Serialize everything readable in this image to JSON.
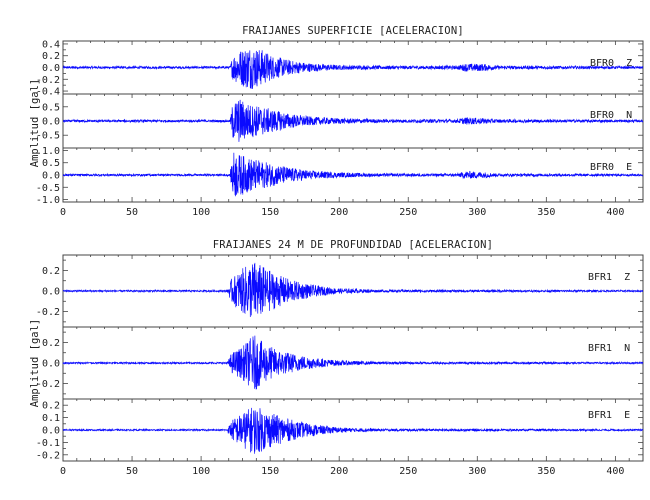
{
  "colors": {
    "trace": "#0a0aff",
    "axis": "#444444",
    "text": "#222222",
    "background": "#ffffff"
  },
  "chart_data": [
    {
      "type": "line",
      "title": "FRAIJANES SUPERFICIE [ACELERACION]",
      "ylabel": "Amplitud [gal]",
      "xlabel": "",
      "xlim": [
        0,
        420
      ],
      "x_ticks": [
        0,
        50,
        100,
        150,
        200,
        250,
        300,
        350,
        400
      ],
      "x_tick_labels": [
        "0",
        "50",
        "100",
        "150",
        "200",
        "250",
        "300",
        "350",
        "400"
      ],
      "grid": false,
      "series": [
        {
          "name": "BFR0 Z",
          "station_label": "BFR0  Z",
          "ylim": [
            -0.45,
            0.45
          ],
          "y_ticks": [
            -0.4,
            -0.3,
            -0.2,
            -0.1,
            0.0,
            0.1,
            0.2,
            0.3,
            0.4
          ],
          "y_tick_labels": [
            "-0.4",
            "-0.2",
            "0.0",
            "0.2",
            "0.4"
          ],
          "y_tick_label_values": [
            -0.4,
            -0.2,
            0.0,
            0.2,
            0.4
          ],
          "envelope": [
            [
              0,
              0.02
            ],
            [
              121,
              0.02
            ],
            [
              123,
              0.22
            ],
            [
              128,
              0.3
            ],
            [
              135,
              0.38
            ],
            [
              145,
              0.3
            ],
            [
              152,
              0.2
            ],
            [
              165,
              0.12
            ],
            [
              180,
              0.07
            ],
            [
              200,
              0.04
            ],
            [
              230,
              0.03
            ],
            [
              285,
              0.03
            ],
            [
              292,
              0.07
            ],
            [
              305,
              0.06
            ],
            [
              315,
              0.03
            ],
            [
              420,
              0.02
            ]
          ]
        },
        {
          "name": "BFR0 N",
          "station_label": "BFR0  N",
          "ylim": [
            -0.95,
            0.95
          ],
          "y_ticks": [
            -0.5,
            0.0,
            0.5
          ],
          "y_tick_labels": [
            "-0.5",
            "0.0",
            "0.5"
          ],
          "y_tick_label_values": [
            -0.5,
            0.0,
            0.5
          ],
          "envelope": [
            [
              0,
              0.04
            ],
            [
              121,
              0.04
            ],
            [
              123,
              0.7
            ],
            [
              128,
              0.8
            ],
            [
              135,
              0.6
            ],
            [
              145,
              0.5
            ],
            [
              152,
              0.4
            ],
            [
              165,
              0.25
            ],
            [
              180,
              0.15
            ],
            [
              200,
              0.1
            ],
            [
              230,
              0.06
            ],
            [
              285,
              0.06
            ],
            [
              292,
              0.13
            ],
            [
              305,
              0.1
            ],
            [
              315,
              0.06
            ],
            [
              420,
              0.04
            ]
          ]
        },
        {
          "name": "BFR0 E",
          "station_label": "BFR0  E",
          "ylim": [
            -1.1,
            1.1
          ],
          "y_ticks": [
            -1.0,
            -0.5,
            0.0,
            0.5,
            1.0
          ],
          "y_tick_labels": [
            "-1.0",
            "-0.5",
            "0.0",
            "0.5",
            "1.0"
          ],
          "y_tick_label_values": [
            -1.0,
            -0.5,
            0.0,
            0.5,
            1.0
          ],
          "envelope": [
            [
              0,
              0.04
            ],
            [
              121,
              0.04
            ],
            [
              123,
              1.0
            ],
            [
              128,
              0.85
            ],
            [
              135,
              0.7
            ],
            [
              145,
              0.55
            ],
            [
              152,
              0.45
            ],
            [
              165,
              0.3
            ],
            [
              180,
              0.18
            ],
            [
              200,
              0.1
            ],
            [
              230,
              0.06
            ],
            [
              285,
              0.06
            ],
            [
              292,
              0.16
            ],
            [
              305,
              0.12
            ],
            [
              315,
              0.06
            ],
            [
              420,
              0.04
            ]
          ]
        }
      ]
    },
    {
      "type": "line",
      "title": "FRAIJANES 24 M DE PROFUNDIDAD [ACELERACION]",
      "ylabel": "Amplitud [gal]",
      "xlabel": "",
      "xlim": [
        0,
        420
      ],
      "x_ticks": [
        0,
        50,
        100,
        150,
        200,
        250,
        300,
        350,
        400
      ],
      "x_tick_labels": [
        "0",
        "50",
        "100",
        "150",
        "200",
        "250",
        "300",
        "350",
        "400"
      ],
      "grid": false,
      "series": [
        {
          "name": "BFR1 Z",
          "station_label": "BFR1  Z",
          "ylim": [
            -0.35,
            0.35
          ],
          "y_ticks": [
            -0.3,
            -0.2,
            -0.1,
            0.0,
            0.1,
            0.2,
            0.3
          ],
          "y_tick_labels": [
            "-0.2",
            "0.0",
            "0.2"
          ],
          "y_tick_label_values": [
            -0.2,
            0.0,
            0.2
          ],
          "envelope": [
            [
              0,
              0.008
            ],
            [
              119,
              0.008
            ],
            [
              122,
              0.12
            ],
            [
              130,
              0.22
            ],
            [
              138,
              0.3
            ],
            [
              145,
              0.24
            ],
            [
              155,
              0.16
            ],
            [
              170,
              0.09
            ],
            [
              185,
              0.05
            ],
            [
              200,
              0.025
            ],
            [
              230,
              0.012
            ],
            [
              420,
              0.008
            ]
          ]
        },
        {
          "name": "BFR1 N",
          "station_label": "BFR1  N",
          "ylim": [
            -0.35,
            0.35
          ],
          "y_ticks": [
            -0.3,
            -0.2,
            -0.1,
            0.0,
            0.1,
            0.2,
            0.3
          ],
          "y_tick_labels": [
            "-0.2",
            "0.0",
            "0.2"
          ],
          "y_tick_label_values": [
            -0.2,
            0.0,
            0.2
          ],
          "envelope": [
            [
              0,
              0.008
            ],
            [
              119,
              0.008
            ],
            [
              122,
              0.1
            ],
            [
              130,
              0.16
            ],
            [
              138,
              0.28
            ],
            [
              145,
              0.2
            ],
            [
              155,
              0.13
            ],
            [
              170,
              0.08
            ],
            [
              185,
              0.045
            ],
            [
              200,
              0.025
            ],
            [
              230,
              0.012
            ],
            [
              420,
              0.008
            ]
          ]
        },
        {
          "name": "BFR1 E",
          "station_label": "BFR1  E",
          "ylim": [
            -0.25,
            0.25
          ],
          "y_ticks": [
            -0.25,
            -0.2,
            -0.15,
            -0.1,
            -0.05,
            0.0,
            0.05,
            0.1,
            0.15,
            0.2,
            0.25
          ],
          "y_tick_labels": [
            "-0.2",
            "-0.1",
            "0.0",
            "0.1",
            "0.2"
          ],
          "y_tick_label_values": [
            -0.2,
            -0.1,
            0.0,
            0.1,
            0.2
          ],
          "envelope": [
            [
              0,
              0.006
            ],
            [
              119,
              0.006
            ],
            [
              122,
              0.08
            ],
            [
              130,
              0.14
            ],
            [
              138,
              0.2
            ],
            [
              145,
              0.17
            ],
            [
              155,
              0.12
            ],
            [
              170,
              0.07
            ],
            [
              185,
              0.04
            ],
            [
              200,
              0.02
            ],
            [
              230,
              0.01
            ],
            [
              420,
              0.006
            ]
          ]
        }
      ]
    }
  ]
}
